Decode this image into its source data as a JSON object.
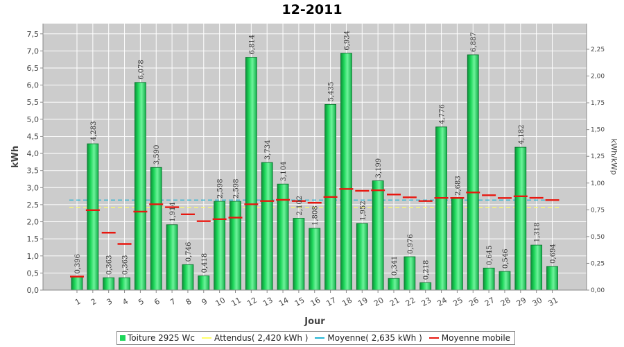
{
  "chart_data": {
    "type": "bar",
    "title": "12-2011",
    "xlabel": "Jour",
    "ylabel": "kWh",
    "ylabel_right": "kWh/kWp",
    "ylim": [
      0,
      7.8
    ],
    "ylim_right": [
      0,
      2.4897
    ],
    "yticks": [
      "0,0",
      "0,5",
      "1,0",
      "1,5",
      "2,0",
      "2,5",
      "3,0",
      "3,5",
      "4,0",
      "4,5",
      "5,0",
      "5,5",
      "6,0",
      "6,5",
      "7,0",
      "7,5"
    ],
    "yticks_right": [
      "0,00",
      "0,25",
      "0,50",
      "0,75",
      "1,00",
      "1,25",
      "1,50",
      "1,75",
      "2,00",
      "2,25"
    ],
    "grid": true,
    "legend_position": "bottom",
    "categories": [
      "1",
      "2",
      "3",
      "4",
      "5",
      "6",
      "7",
      "8",
      "9",
      "10",
      "11",
      "12",
      "13",
      "14",
      "15",
      "16",
      "17",
      "18",
      "19",
      "20",
      "21",
      "22",
      "23",
      "24",
      "25",
      "26",
      "27",
      "28",
      "29",
      "30",
      "31"
    ],
    "series": [
      {
        "name": "Toiture 2925 Wc",
        "kind": "bar",
        "color": "#1ed65a",
        "values": [
          0.396,
          4.283,
          0.363,
          0.363,
          6.078,
          3.59,
          1.914,
          0.746,
          0.418,
          2.598,
          2.598,
          6.814,
          3.734,
          3.104,
          2.102,
          1.808,
          5.435,
          6.934,
          1.952,
          3.199,
          0.341,
          0.976,
          0.218,
          4.776,
          2.683,
          6.887,
          0.645,
          0.546,
          4.182,
          1.318,
          0.694
        ],
        "labels": [
          "0,396",
          "4,283",
          "0,363",
          "0,363",
          "6,078",
          "3,590",
          "1,914",
          "0,746",
          "0,418",
          "2,598",
          "2,598",
          "6,814",
          "3,734",
          "3,104",
          "2,102",
          "1,808",
          "5,435",
          "6,934",
          "1,952",
          "3,199",
          "0,341",
          "0,976",
          "0,218",
          "4,776",
          "2,683",
          "6,887",
          "0,645",
          "0,546",
          "4,182",
          "1,318",
          "0,694"
        ]
      },
      {
        "name": "Attendus( 2,420 kWh )",
        "kind": "constant-line",
        "color": "#ffff66",
        "value": 2.42
      },
      {
        "name": "Moyenne( 2,635 kWh )",
        "kind": "constant-line",
        "color": "#22b4d4",
        "value": 2.635
      },
      {
        "name": "Moyenne mobile",
        "kind": "markers",
        "color": "#e8170f",
        "values": [
          0.396,
          2.34,
          1.681,
          1.351,
          2.297,
          2.512,
          2.427,
          2.217,
          2.017,
          2.075,
          2.122,
          2.513,
          2.607,
          2.642,
          2.606,
          2.556,
          2.725,
          2.959,
          2.906,
          2.921,
          2.798,
          2.715,
          2.607,
          2.697,
          2.697,
          2.858,
          2.776,
          2.696,
          2.747,
          2.7,
          2.635
        ]
      }
    ]
  },
  "legend": {
    "items": [
      "Toiture 2925 Wc",
      "Attendus( 2,420 kWh )",
      "Moyenne( 2,635 kWh )",
      "Moyenne mobile"
    ]
  }
}
